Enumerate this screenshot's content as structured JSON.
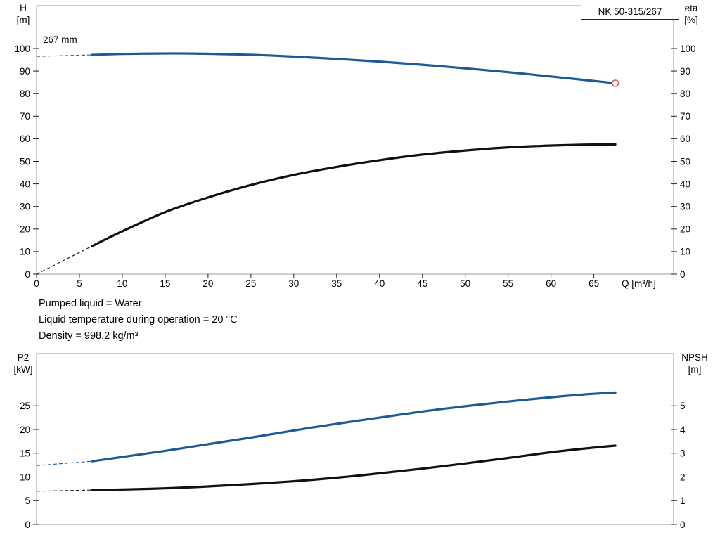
{
  "info": {
    "lines": [
      "Pumped liquid = Water",
      "Liquid temperature during operation = 20 °C",
      "Density = 998.2 kg/m³"
    ]
  },
  "chart_data": [
    {
      "type": "line",
      "name": "head-efficiency-chart",
      "title_box": "NK 50-315/267",
      "impeller_label": "267 mm",
      "grid": false,
      "legend": "none",
      "x": {
        "label": "Q [m³/h]",
        "min": 0,
        "max": 74.3,
        "ticks": [
          0,
          5,
          10,
          15,
          20,
          25,
          30,
          35,
          40,
          45,
          50,
          55,
          60,
          65
        ],
        "show_tick_labels": true
      },
      "y_left": {
        "name": "H",
        "unit": "[m]",
        "min": 0,
        "max": 119,
        "ticks": [
          0,
          10,
          20,
          30,
          40,
          50,
          60,
          70,
          80,
          90,
          100
        ]
      },
      "y_right": {
        "name": "eta",
        "unit": "[%]",
        "min": 0,
        "max": 119,
        "ticks": [
          0,
          10,
          20,
          30,
          40,
          50,
          60,
          70,
          80,
          90,
          100
        ]
      },
      "series": [
        {
          "name": "head-curve-267mm",
          "axis": "left",
          "color": "#1d5a96",
          "width": 3.2,
          "lead_dash": [
            [
              0,
              96.5
            ],
            [
              6.5,
              97.2
            ]
          ],
          "points": [
            [
              6.5,
              97.2
            ],
            [
              10,
              97.6
            ],
            [
              14,
              97.8
            ],
            [
              18,
              97.8
            ],
            [
              22,
              97.5
            ],
            [
              26,
              97.1
            ],
            [
              30,
              96.4
            ],
            [
              35,
              95.4
            ],
            [
              40,
              94.2
            ],
            [
              45,
              92.8
            ],
            [
              50,
              91.2
            ],
            [
              55,
              89.5
            ],
            [
              60,
              87.6
            ],
            [
              64,
              86.0
            ],
            [
              67.5,
              84.6
            ]
          ],
          "end_marker": {
            "color": "#d04a4a"
          }
        },
        {
          "name": "efficiency-curve",
          "axis": "right",
          "color": "#111111",
          "width": 3.2,
          "lead_dash": [
            [
              0,
              0
            ],
            [
              6.5,
              12.5
            ]
          ],
          "points": [
            [
              6.5,
              12.5
            ],
            [
              10,
              19
            ],
            [
              15,
              27.5
            ],
            [
              20,
              34
            ],
            [
              25,
              39.5
            ],
            [
              30,
              44
            ],
            [
              35,
              47.5
            ],
            [
              40,
              50.5
            ],
            [
              45,
              53
            ],
            [
              50,
              54.8
            ],
            [
              55,
              56.2
            ],
            [
              60,
              57
            ],
            [
              64,
              57.4
            ],
            [
              67.5,
              57.5
            ]
          ]
        }
      ]
    },
    {
      "type": "line",
      "name": "power-npsh-chart",
      "grid": false,
      "legend": "none",
      "x": {
        "label": "",
        "min": 0,
        "max": 74.3,
        "ticks": [],
        "show_tick_labels": false
      },
      "y_left": {
        "name": "P2",
        "unit": "[kW]",
        "min": 0,
        "max": 36,
        "ticks": [
          0,
          5,
          10,
          15,
          20,
          25
        ]
      },
      "y_right": {
        "name": "NPSH",
        "unit": "[m]",
        "min": 0,
        "max": 7.2,
        "ticks": [
          0,
          1,
          2,
          3,
          4,
          5
        ]
      },
      "series": [
        {
          "name": "power-curve",
          "axis": "left",
          "color": "#1d5a96",
          "width": 3.2,
          "lead_dash": [
            [
              0,
              12.4
            ],
            [
              6.5,
              13.3
            ]
          ],
          "points": [
            [
              6.5,
              13.3
            ],
            [
              10,
              14.2
            ],
            [
              15,
              15.5
            ],
            [
              20,
              16.9
            ],
            [
              25,
              18.3
            ],
            [
              30,
              19.8
            ],
            [
              35,
              21.2
            ],
            [
              40,
              22.5
            ],
            [
              45,
              23.8
            ],
            [
              50,
              24.9
            ],
            [
              55,
              25.9
            ],
            [
              60,
              26.8
            ],
            [
              64,
              27.4
            ],
            [
              67.5,
              27.8
            ]
          ]
        },
        {
          "name": "npsh-curve",
          "axis": "right",
          "color": "#111111",
          "width": 3.2,
          "lead_dash": [
            [
              0,
              1.4
            ],
            [
              6.5,
              1.45
            ]
          ],
          "points": [
            [
              6.5,
              1.45
            ],
            [
              10,
              1.47
            ],
            [
              15,
              1.52
            ],
            [
              20,
              1.6
            ],
            [
              25,
              1.7
            ],
            [
              30,
              1.82
            ],
            [
              35,
              1.97
            ],
            [
              40,
              2.15
            ],
            [
              45,
              2.35
            ],
            [
              50,
              2.57
            ],
            [
              55,
              2.8
            ],
            [
              60,
              3.04
            ],
            [
              64,
              3.2
            ],
            [
              67.5,
              3.32
            ]
          ]
        }
      ]
    }
  ]
}
